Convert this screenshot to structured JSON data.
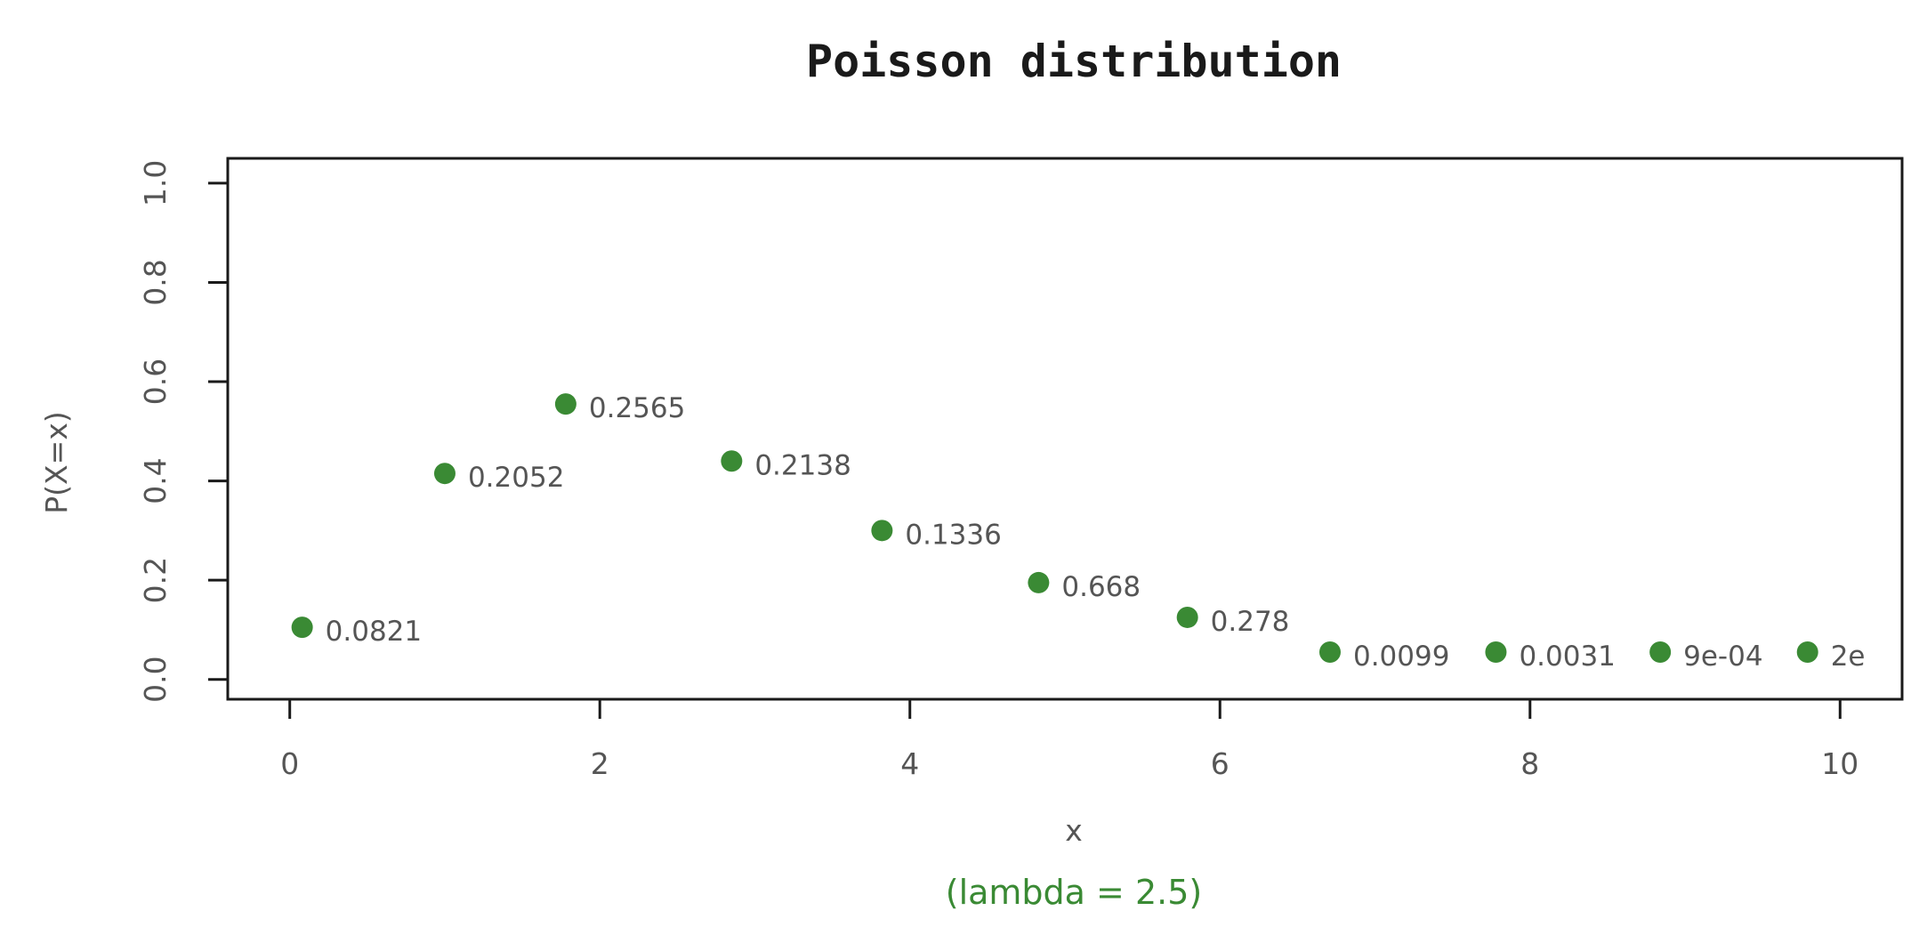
{
  "chart_data": {
    "type": "scatter",
    "title": "Poisson distribution",
    "subtitle": "(lambda  = 2.5)",
    "xlabel": "x",
    "ylabel": "P(X=x)",
    "xlim": [
      -0.4,
      10.4
    ],
    "ylim": [
      -0.04,
      1.05
    ],
    "xticks": [
      0,
      2,
      4,
      6,
      8,
      10
    ],
    "yticks": [
      0.0,
      0.2,
      0.4,
      0.6,
      0.8,
      1.0
    ],
    "xtick_labels": [
      "0",
      "2",
      "4",
      "6",
      "8",
      "10"
    ],
    "ytick_labels": [
      "0.0",
      "0.2",
      "0.4",
      "0.6",
      "0.8",
      "1.0"
    ],
    "grid": false,
    "colors": {
      "point": "#3a8a34",
      "subtitle": "#3a8a34",
      "axis": "#1a1a1a"
    },
    "points": [
      {
        "x": 0.08,
        "y": 0.105,
        "label": "0.0821"
      },
      {
        "x": 1.0,
        "y": 0.415,
        "label": "0.2052"
      },
      {
        "x": 1.78,
        "y": 0.555,
        "label": "0.2565"
      },
      {
        "x": 2.85,
        "y": 0.44,
        "label": "0.2138"
      },
      {
        "x": 3.82,
        "y": 0.3,
        "label": "0.1336"
      },
      {
        "x": 4.83,
        "y": 0.195,
        "label": "0.668"
      },
      {
        "x": 5.79,
        "y": 0.125,
        "label": "0.278"
      },
      {
        "x": 6.71,
        "y": 0.055,
        "label": "0.0099"
      },
      {
        "x": 7.78,
        "y": 0.055,
        "label": "0.0031"
      },
      {
        "x": 8.84,
        "y": 0.055,
        "label": "9e-04"
      },
      {
        "x": 9.79,
        "y": 0.055,
        "label": "2e"
      }
    ]
  }
}
